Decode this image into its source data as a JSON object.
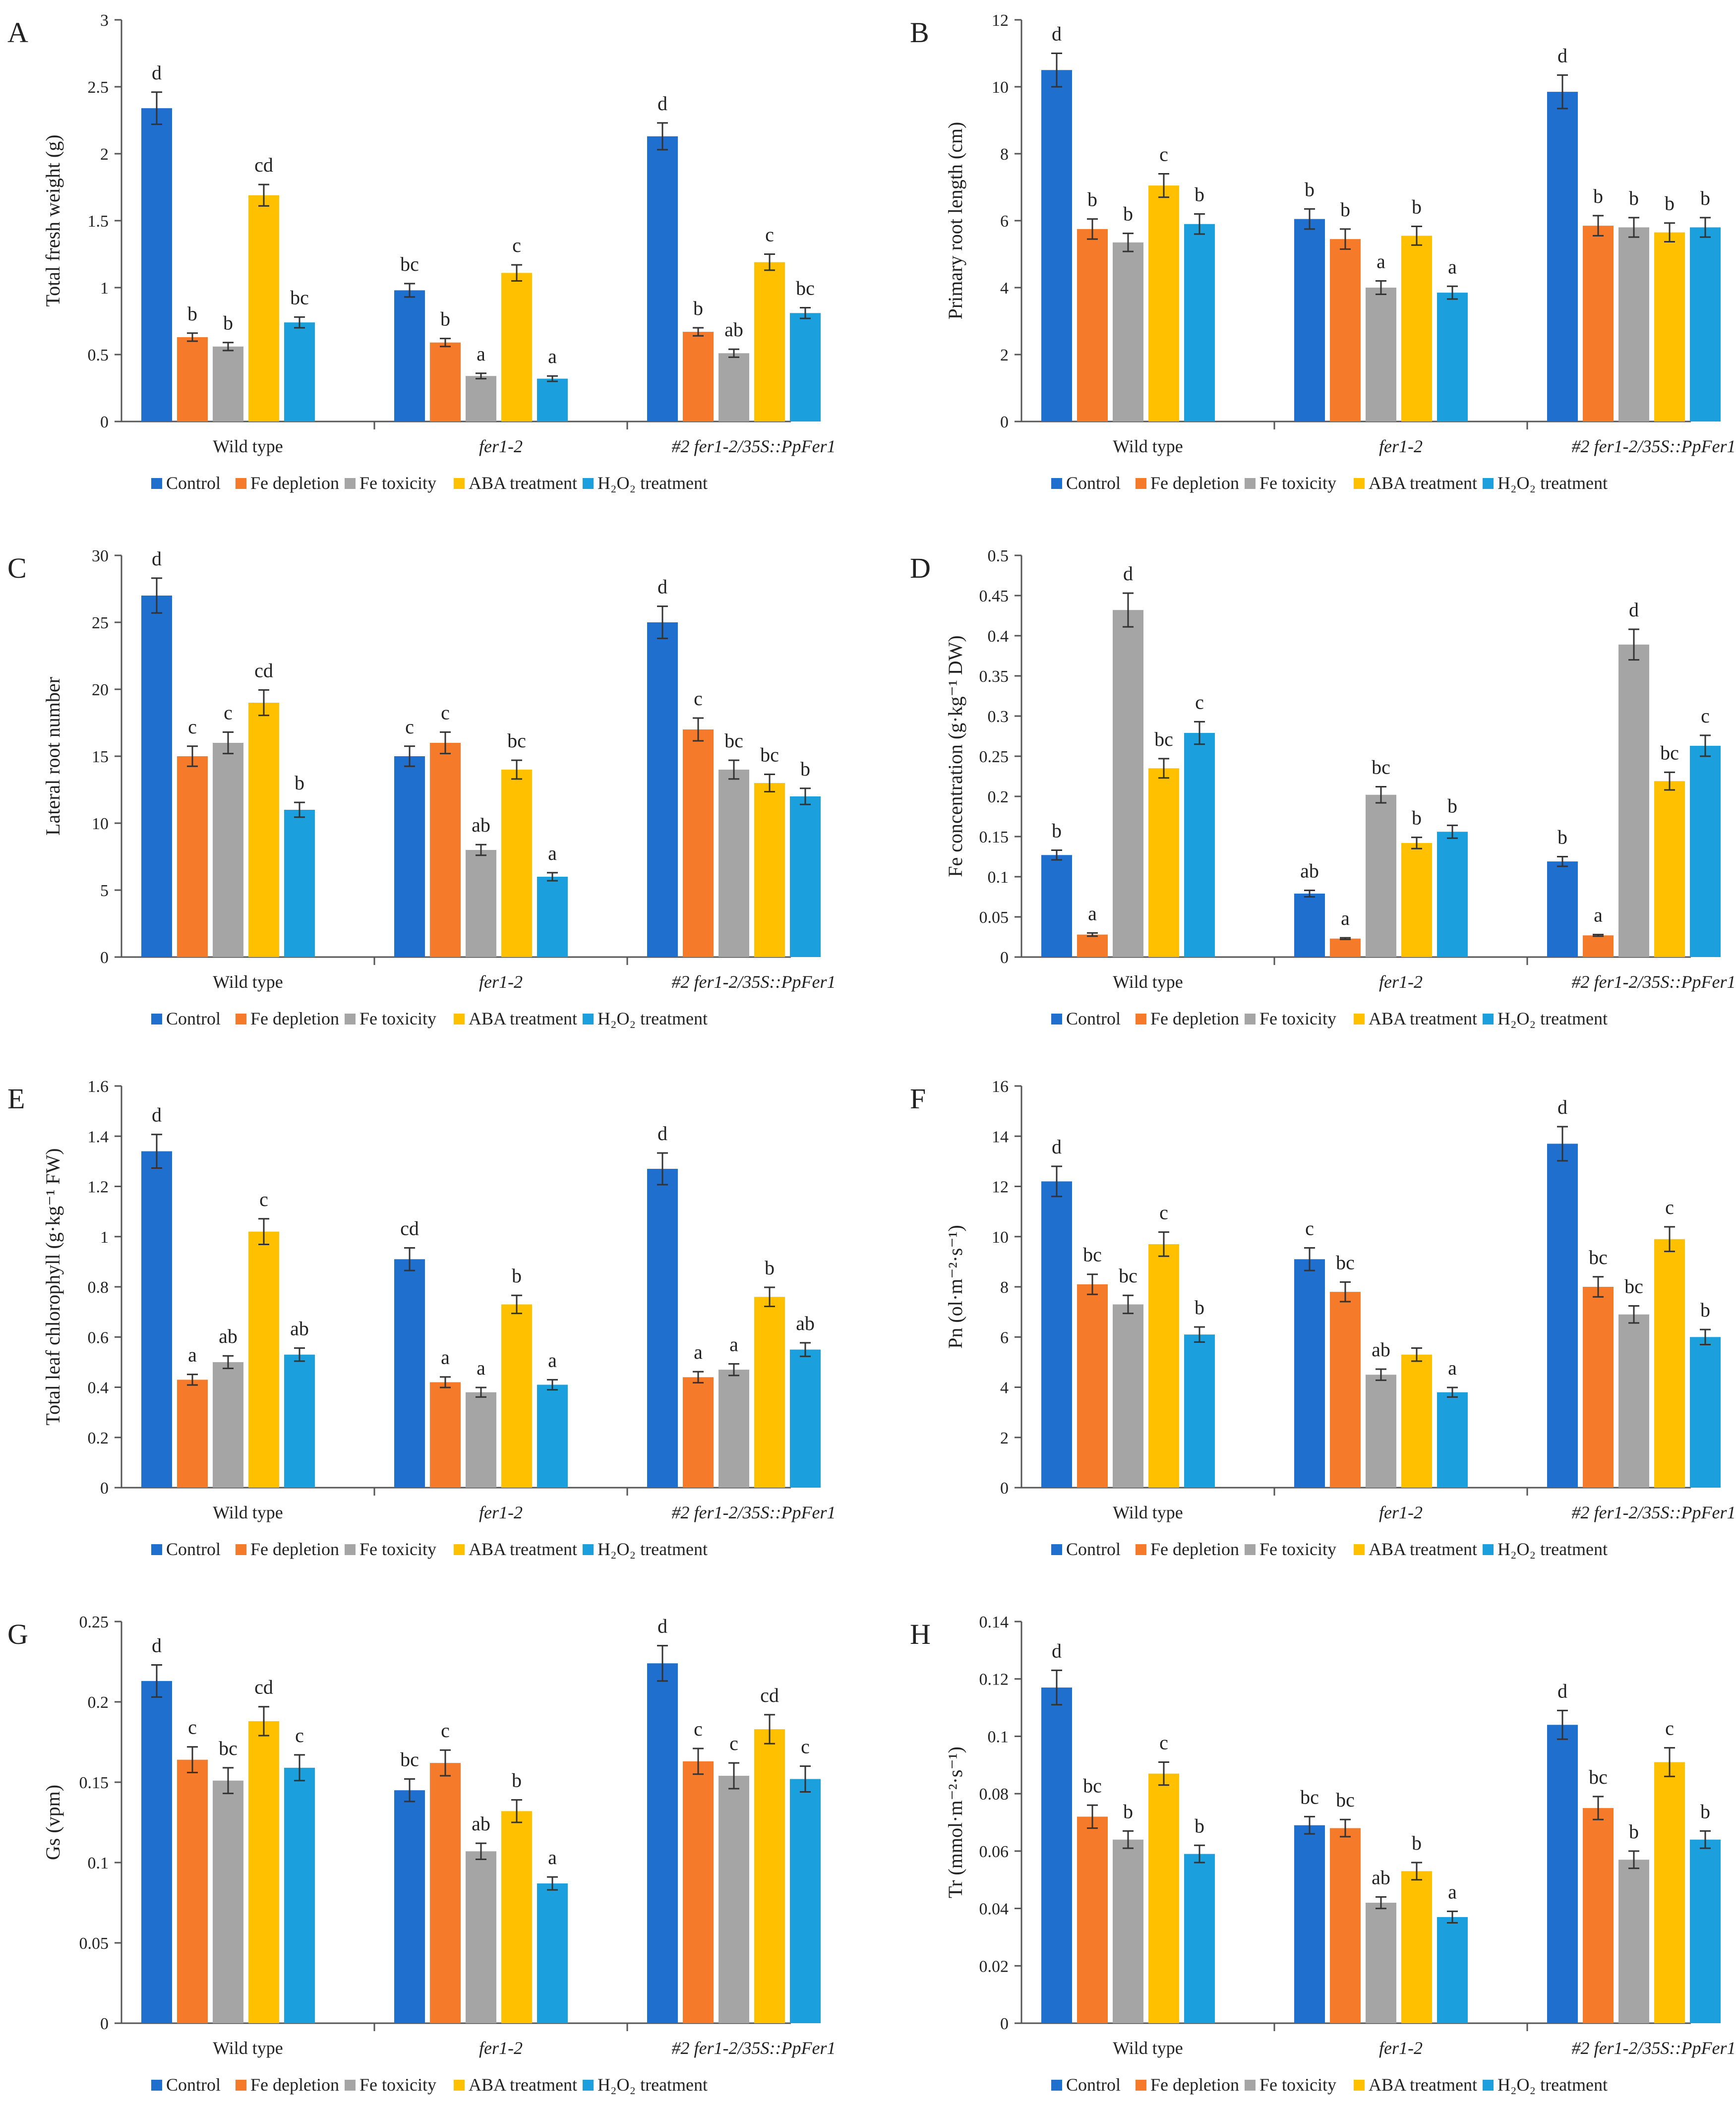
{
  "colors": {
    "Control": "#1f6fcf",
    "Fe depletion": "#f57b2b",
    "Fe toxicity": "#a5a5a5",
    "ABA treatment": "#ffc000",
    "H2O2 treatment": "#1ba0dd"
  },
  "legend": [
    "Control",
    "Fe depletion",
    "Fe toxicity",
    "ABA treatment",
    "H₂O₂ treatment"
  ],
  "chart_data": [
    {
      "panel": "A",
      "type": "bar",
      "ylabel": "Total fresh weight (g)",
      "ylim": [
        0,
        3
      ],
      "ticks": [
        "0",
        "0.5",
        "1",
        "1.5",
        "2",
        "2.5",
        "3"
      ],
      "categories": [
        "Wild type",
        "fer1-2",
        "#2 fer1-2/35S::PpFer1"
      ],
      "series": [
        {
          "name": "Control",
          "values": [
            2.34,
            0.98,
            2.13
          ],
          "errors": [
            0.12,
            0.05,
            0.1
          ],
          "letters": [
            "d",
            "bc",
            "d"
          ]
        },
        {
          "name": "Fe depletion",
          "values": [
            0.63,
            0.59,
            0.67
          ],
          "errors": [
            0.03,
            0.03,
            0.03
          ],
          "letters": [
            "b",
            "b",
            "b"
          ]
        },
        {
          "name": "Fe toxicity",
          "values": [
            0.56,
            0.34,
            0.51
          ],
          "errors": [
            0.03,
            0.02,
            0.03
          ],
          "letters": [
            "b",
            "a",
            "ab"
          ]
        },
        {
          "name": "ABA treatment",
          "values": [
            1.69,
            1.11,
            1.19
          ],
          "errors": [
            0.08,
            0.06,
            0.06
          ],
          "letters": [
            "cd",
            "c",
            "c"
          ]
        },
        {
          "name": "H2O2 treatment",
          "values": [
            0.74,
            0.32,
            0.81
          ],
          "errors": [
            0.04,
            0.02,
            0.04
          ],
          "letters": [
            "bc",
            "a",
            "bc"
          ]
        }
      ]
    },
    {
      "panel": "B",
      "type": "bar",
      "ylabel": "Primary root length (cm)",
      "ylim": [
        0,
        12
      ],
      "ticks": [
        "0",
        "2",
        "4",
        "6",
        "8",
        "10",
        "12"
      ],
      "categories": [
        "Wild type",
        "fer1-2",
        "#2 fer1-2/35S::PpFer1"
      ],
      "series": [
        {
          "name": "Control",
          "values": [
            10.5,
            6.05,
            9.85
          ],
          "errors": [
            0.5,
            0.3,
            0.5
          ],
          "letters": [
            "d",
            "b",
            "d"
          ]
        },
        {
          "name": "Fe depletion",
          "values": [
            5.75,
            5.45,
            5.85
          ],
          "errors": [
            0.3,
            0.3,
            0.3
          ],
          "letters": [
            "b",
            "b",
            "b"
          ]
        },
        {
          "name": "Fe toxicity",
          "values": [
            5.35,
            4.0,
            5.8
          ],
          "errors": [
            0.27,
            0.2,
            0.29
          ],
          "letters": [
            "b",
            "a",
            "b"
          ]
        },
        {
          "name": "ABA treatment",
          "values": [
            7.05,
            5.55,
            5.65
          ],
          "errors": [
            0.35,
            0.28,
            0.28
          ],
          "letters": [
            "c",
            "b",
            "b"
          ]
        },
        {
          "name": "H2O2 treatment",
          "values": [
            5.9,
            3.85,
            5.8
          ],
          "errors": [
            0.3,
            0.19,
            0.29
          ],
          "letters": [
            "b",
            "a",
            "b"
          ]
        }
      ]
    },
    {
      "panel": "C",
      "type": "bar",
      "ylabel": "Lateral root number",
      "ylim": [
        0,
        30
      ],
      "ticks": [
        "0",
        "5",
        "10",
        "15",
        "20",
        "25",
        "30"
      ],
      "categories": [
        "Wild type",
        "fer1-2",
        "#2 fer1-2/35S::PpFer1"
      ],
      "series": [
        {
          "name": "Control",
          "values": [
            27,
            15,
            25
          ],
          "errors": [
            1.3,
            0.75,
            1.2
          ],
          "letters": [
            "d",
            "c",
            "d"
          ]
        },
        {
          "name": "Fe depletion",
          "values": [
            15,
            16,
            17
          ],
          "errors": [
            0.75,
            0.8,
            0.85
          ],
          "letters": [
            "c",
            "c",
            "c"
          ]
        },
        {
          "name": "Fe toxicity",
          "values": [
            16,
            8,
            14
          ],
          "errors": [
            0.8,
            0.4,
            0.7
          ],
          "letters": [
            "c",
            "ab",
            "bc"
          ]
        },
        {
          "name": "ABA treatment",
          "values": [
            19,
            14,
            13
          ],
          "errors": [
            0.95,
            0.7,
            0.65
          ],
          "letters": [
            "cd",
            "bc",
            "bc"
          ]
        },
        {
          "name": "H2O2 treatment",
          "values": [
            11,
            6,
            12
          ],
          "errors": [
            0.55,
            0.3,
            0.6
          ],
          "letters": [
            "b",
            "a",
            "b"
          ]
        }
      ]
    },
    {
      "panel": "D",
      "type": "bar",
      "ylabel": "Fe concentration (g·kg⁻¹ DW)",
      "ylim": [
        0,
        0.5
      ],
      "ticks": [
        "0",
        "0.05",
        "0.1",
        "0.15",
        "0.2",
        "0.25",
        "0.3",
        "0.35",
        "0.4",
        "0.45",
        "0.5"
      ],
      "categories": [
        "Wild type",
        "fer1-2",
        "#2 fer1-2/35S::PpFer1"
      ],
      "series": [
        {
          "name": "Control",
          "values": [
            0.127,
            0.079,
            0.119
          ],
          "errors": [
            0.006,
            0.004,
            0.006
          ],
          "letters": [
            "b",
            "ab",
            "b"
          ]
        },
        {
          "name": "Fe depletion",
          "values": [
            0.028,
            0.023,
            0.027
          ],
          "errors": [
            0.002,
            0.001,
            0.001
          ],
          "letters": [
            "a",
            "a",
            "a"
          ]
        },
        {
          "name": "Fe toxicity",
          "values": [
            0.432,
            0.202,
            0.389
          ],
          "errors": [
            0.021,
            0.01,
            0.019
          ],
          "letters": [
            "d",
            "bc",
            "d"
          ]
        },
        {
          "name": "ABA treatment",
          "values": [
            0.235,
            0.142,
            0.219
          ],
          "errors": [
            0.012,
            0.007,
            0.011
          ],
          "letters": [
            "bc",
            "b",
            "bc"
          ]
        },
        {
          "name": "H2O2 treatment",
          "values": [
            0.279,
            0.156,
            0.263
          ],
          "errors": [
            0.014,
            0.008,
            0.013
          ],
          "letters": [
            "c",
            "b",
            "c"
          ]
        }
      ]
    },
    {
      "panel": "E",
      "type": "bar",
      "ylabel": "Total leaf chlorophyll (g·kg⁻¹ FW)",
      "ylim": [
        0,
        1.6
      ],
      "ticks": [
        "0",
        "0.2",
        "0.4",
        "0.6",
        "0.8",
        "1",
        "1.2",
        "1.4",
        "1.6"
      ],
      "categories": [
        "Wild type",
        "fer1-2",
        "#2 fer1-2/35S::PpFer1"
      ],
      "series": [
        {
          "name": "Control",
          "values": [
            1.34,
            0.91,
            1.27
          ],
          "errors": [
            0.067,
            0.045,
            0.063
          ],
          "letters": [
            "d",
            "cd",
            "d"
          ]
        },
        {
          "name": "Fe depletion",
          "values": [
            0.43,
            0.42,
            0.44
          ],
          "errors": [
            0.021,
            0.021,
            0.022
          ],
          "letters": [
            "a",
            "a",
            "a"
          ]
        },
        {
          "name": "Fe toxicity",
          "values": [
            0.5,
            0.38,
            0.47
          ],
          "errors": [
            0.025,
            0.019,
            0.023
          ],
          "letters": [
            "ab",
            "a",
            "a"
          ]
        },
        {
          "name": "ABA treatment",
          "values": [
            1.02,
            0.73,
            0.76
          ],
          "errors": [
            0.051,
            0.036,
            0.038
          ],
          "letters": [
            "c",
            "b",
            "b"
          ]
        },
        {
          "name": "H2O2 treatment",
          "values": [
            0.53,
            0.41,
            0.55
          ],
          "errors": [
            0.026,
            0.02,
            0.027
          ],
          "letters": [
            "ab",
            "a",
            "ab"
          ]
        }
      ]
    },
    {
      "panel": "F",
      "type": "bar",
      "ylabel": "Pn (ol·m⁻²·s⁻¹)",
      "ylim": [
        0,
        16
      ],
      "ticks": [
        "0",
        "2",
        "4",
        "6",
        "8",
        "10",
        "12",
        "14",
        "16"
      ],
      "categories": [
        "Wild type",
        "fer1-2",
        "#2 fer1-2/35S::PpFer1"
      ],
      "series": [
        {
          "name": "Control",
          "values": [
            12.2,
            9.1,
            13.7
          ],
          "errors": [
            0.6,
            0.45,
            0.68
          ],
          "letters": [
            "d",
            "c",
            "d"
          ]
        },
        {
          "name": "Fe depletion",
          "values": [
            8.1,
            7.8,
            8.0
          ],
          "errors": [
            0.4,
            0.39,
            0.4
          ],
          "letters": [
            "bc",
            "bc",
            "bc"
          ]
        },
        {
          "name": "Fe toxicity",
          "values": [
            7.3,
            4.5,
            6.9
          ],
          "errors": [
            0.36,
            0.22,
            0.34
          ],
          "letters": [
            "bc",
            "ab",
            "bc"
          ]
        },
        {
          "name": "ABA treatment",
          "values": [
            9.7,
            5.3,
            9.9
          ],
          "errors": [
            0.48,
            0.26,
            0.49
          ],
          "letters": [
            "c",
            "",
            "c"
          ]
        },
        {
          "name": "H2O2 treatment",
          "values": [
            6.1,
            3.8,
            6.0
          ],
          "errors": [
            0.3,
            0.19,
            0.3
          ],
          "letters": [
            "b",
            "a",
            "b"
          ]
        }
      ]
    },
    {
      "panel": "G",
      "type": "bar",
      "ylabel": "Gs (vpm)",
      "ylim": [
        0,
        0.25
      ],
      "ticks": [
        "0",
        "0.05",
        "0.1",
        "0.15",
        "0.2",
        "0.25"
      ],
      "categories": [
        "Wild type",
        "fer1-2",
        "#2 fer1-2/35S::PpFer1"
      ],
      "series": [
        {
          "name": "Control",
          "values": [
            0.213,
            0.145,
            0.224
          ],
          "errors": [
            0.01,
            0.007,
            0.011
          ],
          "letters": [
            "d",
            "bc",
            "d"
          ]
        },
        {
          "name": "Fe depletion",
          "values": [
            0.164,
            0.162,
            0.163
          ],
          "errors": [
            0.008,
            0.008,
            0.008
          ],
          "letters": [
            "c",
            "c",
            "c"
          ]
        },
        {
          "name": "Fe toxicity",
          "values": [
            0.151,
            0.107,
            0.154
          ],
          "errors": [
            0.008,
            0.005,
            0.008
          ],
          "letters": [
            "bc",
            "ab",
            "c"
          ]
        },
        {
          "name": "ABA treatment",
          "values": [
            0.188,
            0.132,
            0.183
          ],
          "errors": [
            0.009,
            0.007,
            0.009
          ],
          "letters": [
            "cd",
            "b",
            "cd"
          ]
        },
        {
          "name": "H2O2 treatment",
          "values": [
            0.159,
            0.087,
            0.152
          ],
          "errors": [
            0.008,
            0.004,
            0.008
          ],
          "letters": [
            "c",
            "a",
            "c"
          ]
        }
      ]
    },
    {
      "panel": "H",
      "type": "bar",
      "ylabel": "Tr (mmol·m⁻²·s⁻¹)",
      "ylim": [
        0,
        0.14
      ],
      "ticks": [
        "0",
        "0.02",
        "0.04",
        "0.06",
        "0.08",
        "0.1",
        "0.12",
        "0.14"
      ],
      "categories": [
        "Wild type",
        "fer1-2",
        "#2 fer1-2/35S::PpFer1"
      ],
      "series": [
        {
          "name": "Control",
          "values": [
            0.117,
            0.069,
            0.104
          ],
          "errors": [
            0.006,
            0.003,
            0.005
          ],
          "letters": [
            "d",
            "bc",
            "d"
          ]
        },
        {
          "name": "Fe depletion",
          "values": [
            0.072,
            0.068,
            0.075
          ],
          "errors": [
            0.004,
            0.003,
            0.004
          ],
          "letters": [
            "bc",
            "bc",
            "bc"
          ]
        },
        {
          "name": "Fe toxicity",
          "values": [
            0.064,
            0.042,
            0.057
          ],
          "errors": [
            0.003,
            0.002,
            0.003
          ],
          "letters": [
            "b",
            "ab",
            "b"
          ]
        },
        {
          "name": "ABA treatment",
          "values": [
            0.087,
            0.053,
            0.091
          ],
          "errors": [
            0.004,
            0.003,
            0.005
          ],
          "letters": [
            "c",
            "b",
            "c"
          ]
        },
        {
          "name": "H2O2 treatment",
          "values": [
            0.059,
            0.037,
            0.064
          ],
          "errors": [
            0.003,
            0.002,
            0.003
          ],
          "letters": [
            "b",
            "a",
            "b"
          ]
        }
      ]
    }
  ]
}
